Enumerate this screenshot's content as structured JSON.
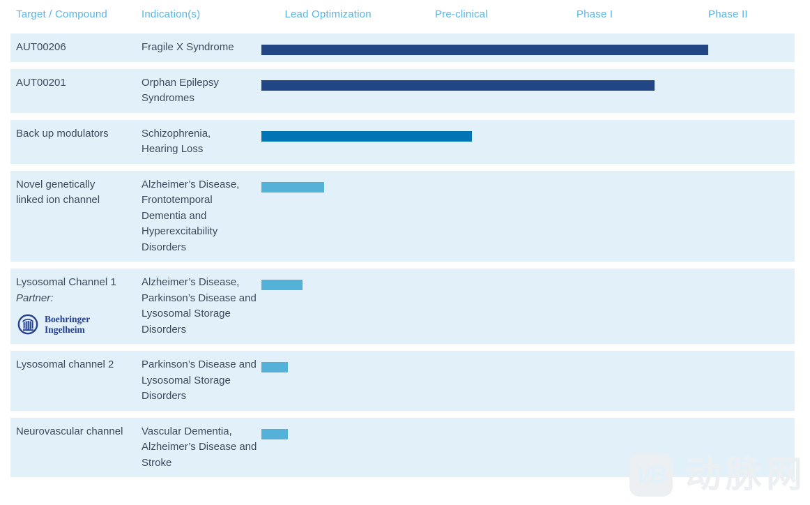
{
  "header": {
    "col_target": "Target / Compound",
    "col_indication": "Indication(s)",
    "stages": [
      "Lead Optimization",
      "Pre-clinical",
      "Phase I",
      "Phase II"
    ]
  },
  "rows": [
    {
      "target": "AUT00206",
      "indication": "Fragile X Syndrome",
      "bar": {
        "stages_reached": 3.35,
        "color": "#224586"
      }
    },
    {
      "target": "AUT00201",
      "indication": "Orphan Epilepsy\nSyndromes",
      "bar": {
        "stages_reached": 2.95,
        "color": "#224586"
      }
    },
    {
      "target": "Back up modulators",
      "indication": "Schizophrenia,\nHearing Loss",
      "bar": {
        "stages_reached": 1.58,
        "color": "#0074b4"
      }
    },
    {
      "target": "Novel genetically\nlinked ion channel",
      "indication": "Alzheimer’s Disease,\nFrontotemporal\nDementia and\nHyperexcitability\nDisorders",
      "bar": {
        "stages_reached": 0.47,
        "color": "#54b2d9"
      }
    },
    {
      "target": "Lysosomal Channel 1",
      "partner": {
        "label": "Partner:",
        "name_line1": "Boehringer",
        "name_line2": "Ingelheim"
      },
      "indication": "Alzheimer’s Disease,\nParkinson’s Disease and\nLysosomal Storage\nDisorders",
      "bar": {
        "stages_reached": 0.31,
        "color": "#54b2d9"
      }
    },
    {
      "target": "Lysosomal channel 2",
      "indication": "Parkinson’s Disease and\nLysosomal Storage\nDisorders",
      "bar": {
        "stages_reached": 0.2,
        "color": "#54b2d9"
      }
    },
    {
      "target": "Neurovascular channel",
      "indication": "Vascular Dementia,\nAlzheimer’s Disease and\nStroke",
      "bar": {
        "stages_reached": 0.2,
        "color": "#54b2d9"
      }
    }
  ],
  "watermark": {
    "logo": "VB",
    "text": "动脉网"
  },
  "colors": {
    "header_text": "#56b5e4",
    "row_bg": "#e2f1f9",
    "text": "#3b4a5c",
    "bar_dark": "#224586",
    "bar_medium": "#0074b4",
    "bar_light": "#54b2d9",
    "partner_blue": "#243f8f",
    "watermark": "#edf0f2"
  },
  "chart_data": {
    "type": "bar",
    "title": "",
    "xlabel": "",
    "ylabel": "",
    "stages": [
      "Lead Optimization",
      "Pre-clinical",
      "Phase I",
      "Phase II"
    ],
    "xlim_stage_units": [
      0,
      4
    ],
    "grid": false,
    "legend": false,
    "categories": [
      "AUT00206",
      "AUT00201",
      "Back up modulators",
      "Novel genetically linked ion channel",
      "Lysosomal Channel 1",
      "Lysosomal channel 2",
      "Neurovascular channel"
    ],
    "indications": [
      "Fragile X Syndrome",
      "Orphan Epilepsy Syndromes",
      "Schizophrenia, Hearing Loss",
      "Alzheimer’s Disease, Frontotemporal Dementia and Hyperexcitability Disorders",
      "Alzheimer’s Disease, Parkinson’s Disease and Lysosomal Storage Disorders",
      "Parkinson’s Disease and Lysosomal Storage Disorders",
      "Vascular Dementia, Alzheimer’s Disease and Stroke"
    ],
    "values": [
      3.35,
      2.95,
      1.58,
      0.47,
      0.31,
      0.2,
      0.2
    ],
    "bar_colors": [
      "#224586",
      "#224586",
      "#0074b4",
      "#54b2d9",
      "#54b2d9",
      "#54b2d9",
      "#54b2d9"
    ],
    "partners": [
      null,
      null,
      null,
      null,
      "Boehringer Ingelheim",
      null,
      null
    ]
  }
}
